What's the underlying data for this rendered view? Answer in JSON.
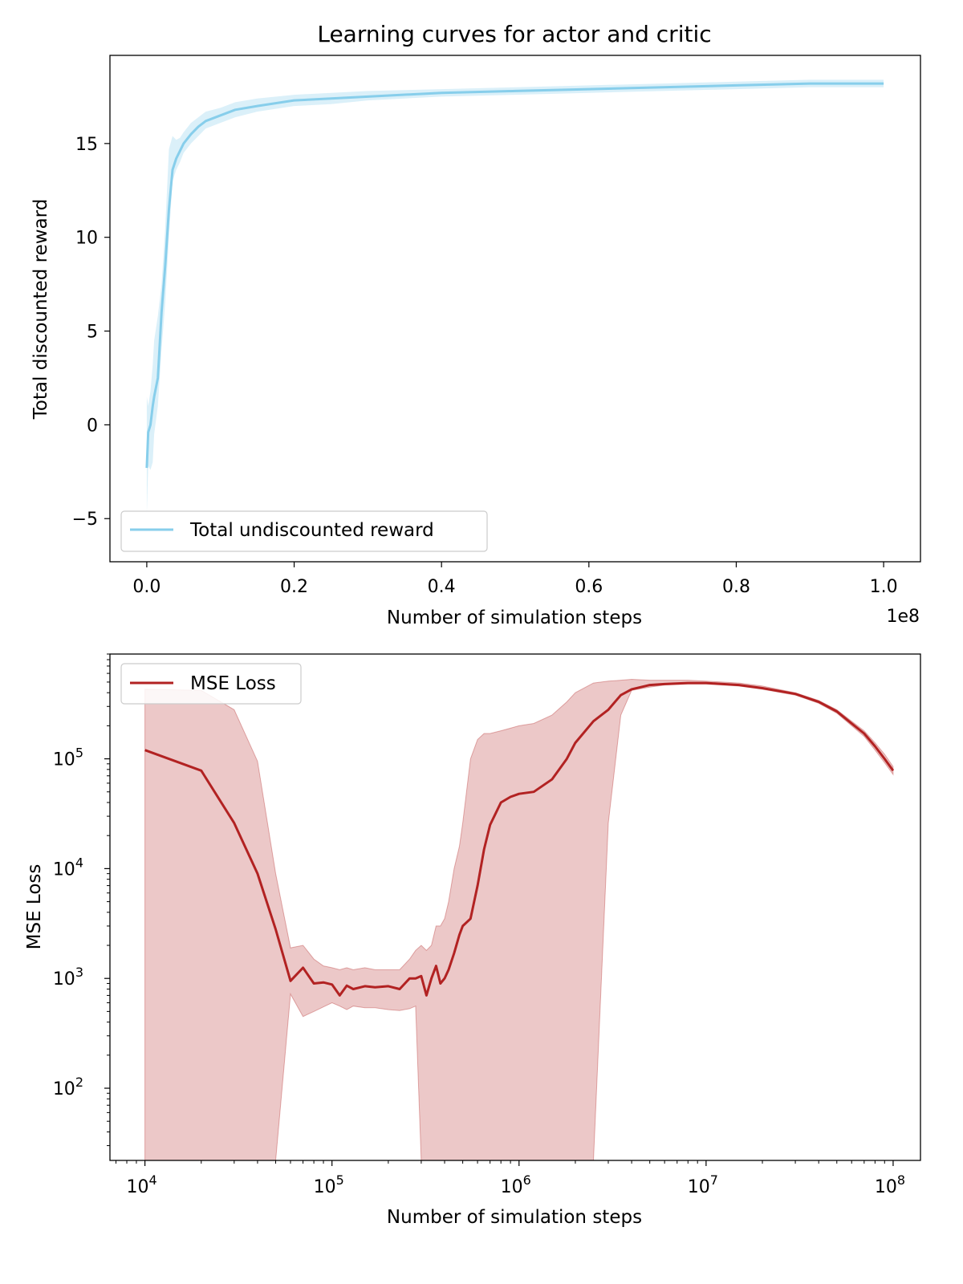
{
  "chart_data": [
    {
      "type": "line",
      "title": "Learning curves for actor and critic",
      "xlabel": "Number of simulation steps",
      "ylabel": "Total discounted reward",
      "x_offset_text": "1e8",
      "xlim": [
        -0.05,
        1.05
      ],
      "ylim": [
        -7.3,
        19.7
      ],
      "x_scale": "linear",
      "y_scale": "linear",
      "grid": false,
      "legend_position": "lower left",
      "x_ticks": [
        0.0,
        0.2,
        0.4,
        0.6,
        0.8,
        1.0
      ],
      "x_tick_labels": [
        "0.0",
        "0.2",
        "0.4",
        "0.6",
        "0.8",
        "1.0"
      ],
      "y_ticks": [
        -5,
        0,
        5,
        10,
        15
      ],
      "y_tick_labels": [
        "−5",
        "0",
        "5",
        "10",
        "15"
      ],
      "series": [
        {
          "name": "Total undiscounted reward",
          "color": "#87ceeb",
          "band_color": "#87ceeb",
          "x": [
            0.0,
            0.002,
            0.005,
            0.008,
            0.01,
            0.015,
            0.02,
            0.025,
            0.03,
            0.035,
            0.04,
            0.045,
            0.05,
            0.06,
            0.07,
            0.08,
            0.1,
            0.12,
            0.15,
            0.2,
            0.25,
            0.3,
            0.4,
            0.5,
            0.6,
            0.7,
            0.8,
            0.9,
            1.0
          ],
          "y": [
            -2.3,
            -0.4,
            0.0,
            1.0,
            1.5,
            2.5,
            6.0,
            8.5,
            11.5,
            13.6,
            14.2,
            14.6,
            15.0,
            15.5,
            15.9,
            16.2,
            16.5,
            16.8,
            17.0,
            17.3,
            17.4,
            17.5,
            17.7,
            17.8,
            17.9,
            18.0,
            18.1,
            18.2,
            18.2
          ],
          "lower": [
            -4.8,
            -2.2,
            -2.4,
            -2.0,
            -0.5,
            1.0,
            4.0,
            6.5,
            10.0,
            13.0,
            13.6,
            14.0,
            14.5,
            15.0,
            15.4,
            15.8,
            16.1,
            16.4,
            16.7,
            17.0,
            17.1,
            17.3,
            17.5,
            17.6,
            17.7,
            17.8,
            17.9,
            18.0,
            18.0
          ],
          "upper": [
            1.5,
            1.0,
            1.8,
            3.2,
            4.5,
            5.8,
            7.5,
            10.5,
            14.7,
            15.4,
            15.2,
            15.3,
            15.6,
            16.1,
            16.4,
            16.7,
            16.9,
            17.2,
            17.4,
            17.6,
            17.7,
            17.8,
            17.9,
            18.0,
            18.1,
            18.2,
            18.3,
            18.4,
            18.4
          ]
        }
      ]
    },
    {
      "type": "line",
      "title": "",
      "xlabel": "Number of simulation steps",
      "ylabel": "MSE Loss",
      "x_scale": "log",
      "y_scale": "log",
      "xlim": [
        6500,
        140000000
      ],
      "ylim": [
        22,
        900000
      ],
      "grid": false,
      "legend_position": "upper left",
      "x_ticks": [
        10000,
        100000,
        1000000,
        10000000,
        100000000
      ],
      "x_tick_labels": [
        {
          "base": "10",
          "exp": "4"
        },
        {
          "base": "10",
          "exp": "5"
        },
        {
          "base": "10",
          "exp": "6"
        },
        {
          "base": "10",
          "exp": "7"
        },
        {
          "base": "10",
          "exp": "8"
        }
      ],
      "y_ticks": [
        100,
        1000,
        10000,
        100000
      ],
      "y_tick_labels": [
        {
          "base": "10",
          "exp": "2"
        },
        {
          "base": "10",
          "exp": "3"
        },
        {
          "base": "10",
          "exp": "4"
        },
        {
          "base": "10",
          "exp": "5"
        }
      ],
      "series": [
        {
          "name": "MSE Loss",
          "color": "#b22222",
          "band_color": "#b22222",
          "x": [
            10000,
            20000,
            30000,
            40000,
            50000,
            60000,
            70000,
            80000,
            90000,
            100000,
            110000,
            120000,
            130000,
            150000,
            170000,
            200000,
            230000,
            260000,
            280000,
            300000,
            320000,
            340000,
            360000,
            380000,
            400000,
            420000,
            450000,
            480000,
            500000,
            550000,
            600000,
            650000,
            700000,
            800000,
            900000,
            1000000,
            1200000,
            1500000,
            1800000,
            2000000,
            2500000,
            3000000,
            3500000,
            4000000,
            5000000,
            6000000,
            8000000,
            10000000,
            15000000,
            20000000,
            30000000,
            40000000,
            50000000,
            60000000,
            70000000,
            80000000,
            90000000,
            100000000
          ],
          "y": [
            120000,
            78000,
            26000,
            9000,
            2800,
            950,
            1250,
            900,
            920,
            880,
            700,
            860,
            800,
            850,
            830,
            850,
            800,
            1000,
            1000,
            1050,
            700,
            1000,
            1300,
            900,
            1000,
            1200,
            1700,
            2500,
            3000,
            3500,
            7000,
            15000,
            25000,
            40000,
            45000,
            48000,
            50000,
            65000,
            100000,
            140000,
            220000,
            280000,
            380000,
            430000,
            470000,
            480000,
            490000,
            490000,
            470000,
            440000,
            390000,
            330000,
            270000,
            210000,
            170000,
            130000,
            100000,
            78000
          ],
          "lower": [
            22,
            22,
            22,
            22,
            22,
            720,
            450,
            500,
            550,
            600,
            560,
            520,
            560,
            540,
            540,
            520,
            510,
            530,
            560,
            22,
            22,
            22,
            22,
            22,
            22,
            22,
            22,
            22,
            22,
            22,
            22,
            22,
            22,
            22,
            22,
            22,
            22,
            22,
            22,
            22,
            22,
            26000,
            250000,
            420000,
            450000,
            470000,
            480000,
            480000,
            460000,
            430000,
            380000,
            320000,
            260000,
            200000,
            160000,
            120000,
            92000,
            72000
          ],
          "upper": [
            430000,
            420000,
            280000,
            95000,
            9000,
            1900,
            2000,
            1500,
            1300,
            1250,
            1200,
            1250,
            1200,
            1250,
            1200,
            1200,
            1200,
            1500,
            1800,
            2000,
            1800,
            2000,
            3000,
            3000,
            3500,
            5000,
            10000,
            16000,
            26000,
            100000,
            150000,
            170000,
            170000,
            180000,
            190000,
            200000,
            210000,
            250000,
            330000,
            400000,
            490000,
            510000,
            520000,
            530000,
            520000,
            520000,
            520000,
            510000,
            490000,
            460000,
            400000,
            340000,
            280000,
            220000,
            180000,
            140000,
            110000,
            85000
          ]
        }
      ]
    }
  ]
}
